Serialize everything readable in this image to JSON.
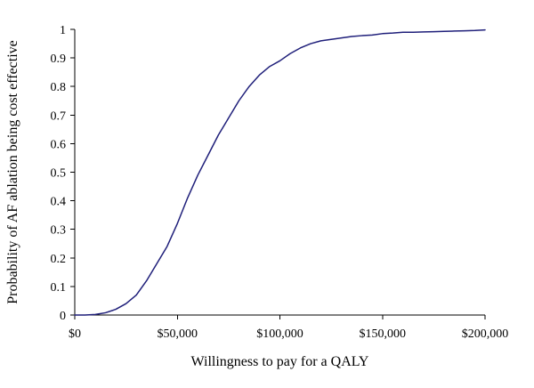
{
  "chart_data": {
    "type": "line",
    "title": "",
    "xlabel": "Willingness to pay for a QALY",
    "ylabel": "Probability of AF ablation being cost effective",
    "xlim": [
      0,
      200000
    ],
    "ylim": [
      0,
      1
    ],
    "grid": false,
    "x_ticks": [
      0,
      50000,
      100000,
      150000,
      200000
    ],
    "x_tick_labels": [
      "$0",
      "$50,000",
      "$100,000",
      "$150,000",
      "$200,000"
    ],
    "y_ticks": [
      0,
      0.1,
      0.2,
      0.3,
      0.4,
      0.5,
      0.6,
      0.7,
      0.8,
      0.9,
      1
    ],
    "y_tick_labels": [
      "0",
      "0.1",
      "0.2",
      "0.3",
      "0.4",
      "0.5",
      "0.6",
      "0.7",
      "0.8",
      "0.9",
      "1"
    ],
    "series_color": "#1f1f7a",
    "series": [
      {
        "x": [
          0,
          5000,
          10000,
          15000,
          20000,
          25000,
          30000,
          35000,
          40000,
          45000,
          50000,
          55000,
          60000,
          65000,
          70000,
          75000,
          80000,
          85000,
          90000,
          95000,
          100000,
          105000,
          110000,
          115000,
          120000,
          125000,
          130000,
          135000,
          140000,
          145000,
          150000,
          155000,
          160000,
          165000,
          170000,
          175000,
          180000,
          185000,
          190000,
          195000,
          200000
        ],
        "values": [
          0,
          0,
          0.002,
          0.008,
          0.02,
          0.04,
          0.07,
          0.12,
          0.18,
          0.24,
          0.32,
          0.41,
          0.49,
          0.56,
          0.63,
          0.69,
          0.75,
          0.8,
          0.84,
          0.87,
          0.89,
          0.915,
          0.935,
          0.95,
          0.96,
          0.965,
          0.97,
          0.975,
          0.978,
          0.98,
          0.985,
          0.987,
          0.99,
          0.99,
          0.991,
          0.992,
          0.993,
          0.994,
          0.995,
          0.996,
          0.998
        ]
      }
    ]
  }
}
